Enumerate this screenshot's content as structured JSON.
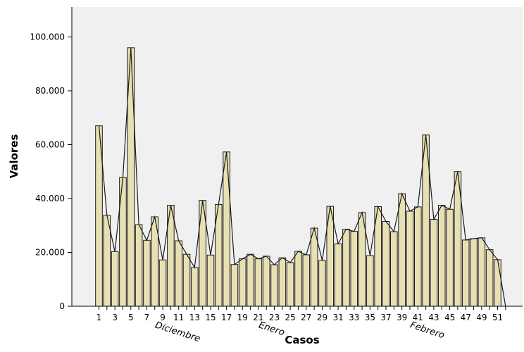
{
  "chart_data": {
    "type": "bar",
    "xlabel": "Casos",
    "ylabel": "Valores",
    "ylim": [
      0,
      110000
    ],
    "yticks": [
      0,
      20000,
      40000,
      60000,
      80000,
      100000
    ],
    "ytick_labels": [
      "0",
      "20.000",
      "40.000",
      "60.000",
      "80.000",
      "100.000"
    ],
    "categories": [
      1,
      2,
      3,
      4,
      5,
      6,
      7,
      8,
      9,
      10,
      11,
      12,
      13,
      14,
      15,
      16,
      17,
      18,
      19,
      20,
      21,
      22,
      23,
      24,
      25,
      26,
      27,
      28,
      29,
      30,
      31,
      32,
      33,
      34,
      35,
      36,
      37,
      38,
      39,
      40,
      41,
      42,
      43,
      44,
      45,
      46,
      47,
      48,
      49,
      50,
      51,
      52
    ],
    "xtick_labels": [
      "1",
      "3",
      "5",
      "7",
      "9",
      "11",
      "13",
      "15",
      "17",
      "19",
      "21",
      "23",
      "25",
      "27",
      "29",
      "31",
      "33",
      "35",
      "37",
      "39",
      "41",
      "43",
      "45",
      "47",
      "49",
      "51"
    ],
    "values": [
      67000,
      33800,
      20300,
      47800,
      96000,
      30300,
      24500,
      33200,
      17200,
      37500,
      24300,
      19300,
      14400,
      39300,
      19000,
      37800,
      57300,
      15500,
      17600,
      19300,
      17600,
      18600,
      15400,
      18000,
      16200,
      20400,
      19100,
      29000,
      17000,
      37100,
      23200,
      28600,
      27800,
      34800,
      18800,
      37000,
      31500,
      27700,
      41800,
      35300,
      36900,
      63600,
      32300,
      37500,
      36000,
      50000,
      24600,
      25100,
      25400,
      21000,
      17300,
      0
    ],
    "line_values": [
      67000,
      33800,
      20300,
      47800,
      96000,
      30300,
      24500,
      33200,
      17200,
      37500,
      24300,
      19300,
      14400,
      39300,
      19000,
      37800,
      57300,
      15500,
      17600,
      19300,
      17600,
      18600,
      15400,
      18000,
      16200,
      20400,
      19100,
      29000,
      17000,
      37100,
      23200,
      28600,
      27800,
      34800,
      18800,
      37000,
      31500,
      27700,
      41800,
      35300,
      36900,
      63600,
      32300,
      37500,
      36000,
      50000,
      24600,
      25100,
      25400,
      21000,
      17300,
      0
    ],
    "month_labels": [
      {
        "text": "Diciembre",
        "case": 11.5
      },
      {
        "text": "Enero",
        "case": 24.5
      },
      {
        "text": "Febrero",
        "case": 43.5
      }
    ],
    "grid": false,
    "colors": {
      "bar_fill": "#e8e0b3",
      "bar_stroke": "#1a1a1a",
      "line": "#1a1a1a",
      "plot_bg": "#f0f0f0"
    }
  }
}
